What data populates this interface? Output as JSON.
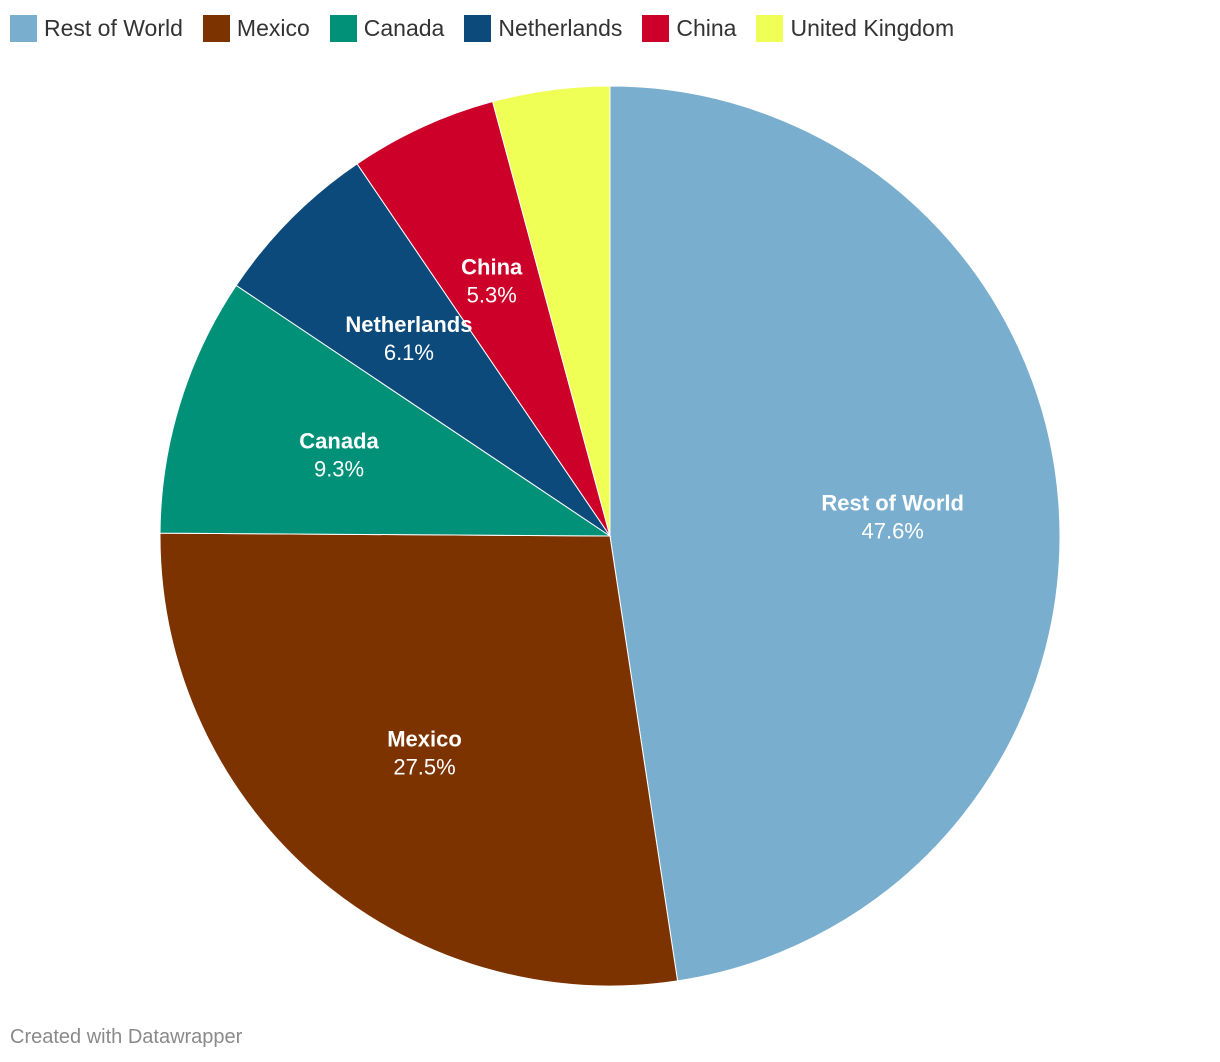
{
  "chart_data": {
    "type": "pie",
    "slices": [
      {
        "label": "Rest of World",
        "value": 47.6,
        "display": "47.6%",
        "color": "#7aaecf",
        "show_label": true
      },
      {
        "label": "Mexico",
        "value": 27.5,
        "display": "27.5%",
        "color": "#7d3300",
        "show_label": true
      },
      {
        "label": "Canada",
        "value": 9.3,
        "display": "9.3%",
        "color": "#009178",
        "show_label": true
      },
      {
        "label": "Netherlands",
        "value": 6.1,
        "display": "6.1%",
        "color": "#0c4a7b",
        "show_label": true
      },
      {
        "label": "China",
        "value": 5.3,
        "display": "5.3%",
        "color": "#cc0029",
        "show_label": true
      },
      {
        "label": "United Kingdom",
        "value": 4.2,
        "display": "4.2%",
        "color": "#f0ff55",
        "show_label": false
      }
    ],
    "legend_position": "top-left",
    "label_color": "#ffffff"
  },
  "footer": {
    "credit": "Created with Datawrapper"
  }
}
